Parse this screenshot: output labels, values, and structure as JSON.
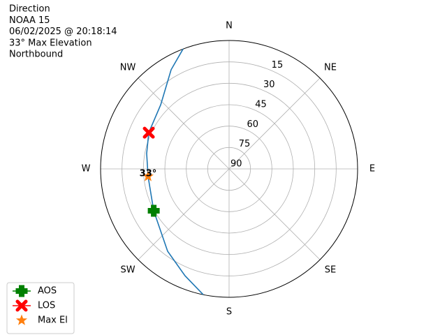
{
  "chart_data": {
    "type": "polar",
    "title_lines": [
      "Direction",
      "NOAA 15",
      "06/02/2025 @ 20:18:14",
      "33° Max Elevation",
      "Northbound"
    ],
    "rlim": [
      90,
      0
    ],
    "rticks": [
      15,
      30,
      45,
      60,
      75,
      90
    ],
    "thetaticks": [
      {
        "value": 0,
        "label": "N"
      },
      {
        "value": 45,
        "label": "NE"
      },
      {
        "value": 90,
        "label": "E"
      },
      {
        "value": 135,
        "label": "SE"
      },
      {
        "value": 180,
        "label": "S"
      },
      {
        "value": 225,
        "label": "SW"
      },
      {
        "value": 270,
        "label": "W"
      },
      {
        "value": 315,
        "label": "NW"
      }
    ],
    "grid": true,
    "track": {
      "color": "#1f77b4",
      "azimuth": [
        191.6,
        202.4,
        216.7,
        240.9,
        264.7,
        280.6,
        294.3,
        313.2,
        329.7,
        339
      ],
      "elevation": [
        0,
        9,
        18,
        29.6,
        33,
        31.3,
        28.3,
        24.3,
        9.5,
        0
      ]
    },
    "markers": [
      {
        "name": "AOS",
        "color": "#008000",
        "shape": "plus",
        "azimuth": 240.9,
        "elevation": 29.6
      },
      {
        "name": "LOS",
        "color": "#ff0000",
        "shape": "x",
        "azimuth": 294.3,
        "elevation": 28.3
      },
      {
        "name": "Max El",
        "color": "#ff7f0e",
        "shape": "star",
        "azimuth": 264.7,
        "elevation": 33
      }
    ],
    "annotation": "33°",
    "legend": "lower left"
  }
}
